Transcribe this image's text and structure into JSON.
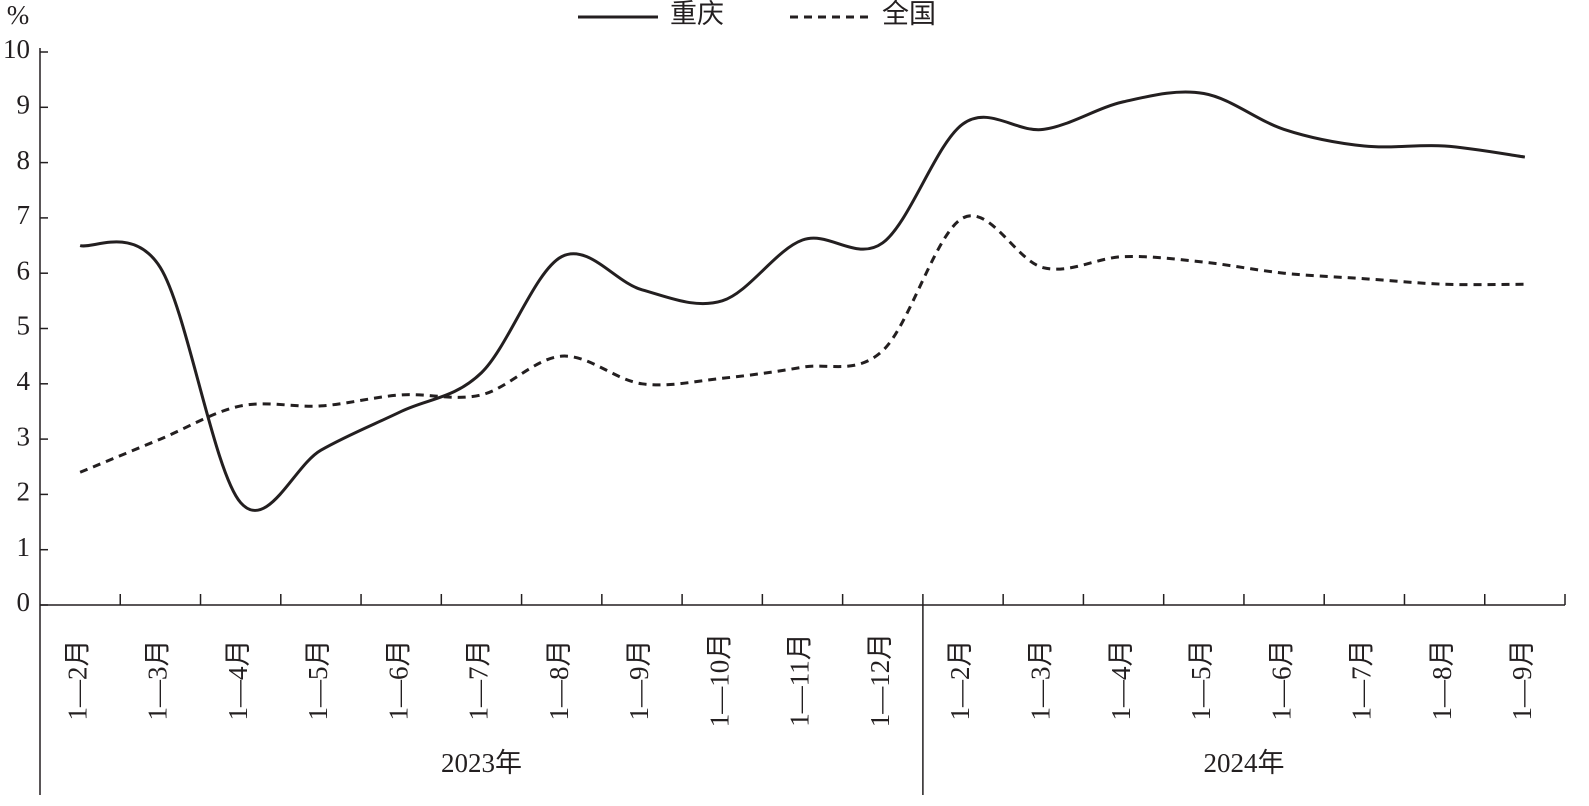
{
  "chart_data": {
    "type": "line",
    "y_unit": "%",
    "category_groups": [
      {
        "name": "2023年",
        "categories": [
          "1—2月",
          "1—3月",
          "1—4月",
          "1—5月",
          "1—6月",
          "1—7月",
          "1—8月",
          "1—9月",
          "1—10月",
          "1—11月",
          "1—12月"
        ]
      },
      {
        "name": "2024年",
        "categories": [
          "1—2月",
          "1—3月",
          "1—4月",
          "1—5月",
          "1—6月",
          "1—7月",
          "1—8月",
          "1—9月"
        ]
      }
    ],
    "series": [
      {
        "name": "重庆",
        "color": "#231f20",
        "style": "solid",
        "values": [
          6.5,
          6.1,
          1.85,
          2.8,
          3.5,
          4.2,
          6.3,
          5.7,
          5.5,
          6.6,
          6.55,
          8.7,
          8.6,
          9.1,
          9.25,
          8.6,
          8.3,
          8.3,
          8.1
        ]
      },
      {
        "name": "全国",
        "color": "#231f20",
        "style": "dashed",
        "values": [
          2.4,
          3.0,
          3.6,
          3.6,
          3.8,
          3.8,
          4.5,
          4.0,
          4.1,
          4.3,
          4.6,
          7.0,
          6.1,
          6.3,
          6.2,
          6.0,
          5.9,
          5.8,
          5.8
        ]
      }
    ],
    "ylim": [
      0,
      10
    ],
    "yticks": [
      0,
      1,
      2,
      3,
      4,
      5,
      6,
      7,
      8,
      9,
      10
    ],
    "grid": false
  }
}
